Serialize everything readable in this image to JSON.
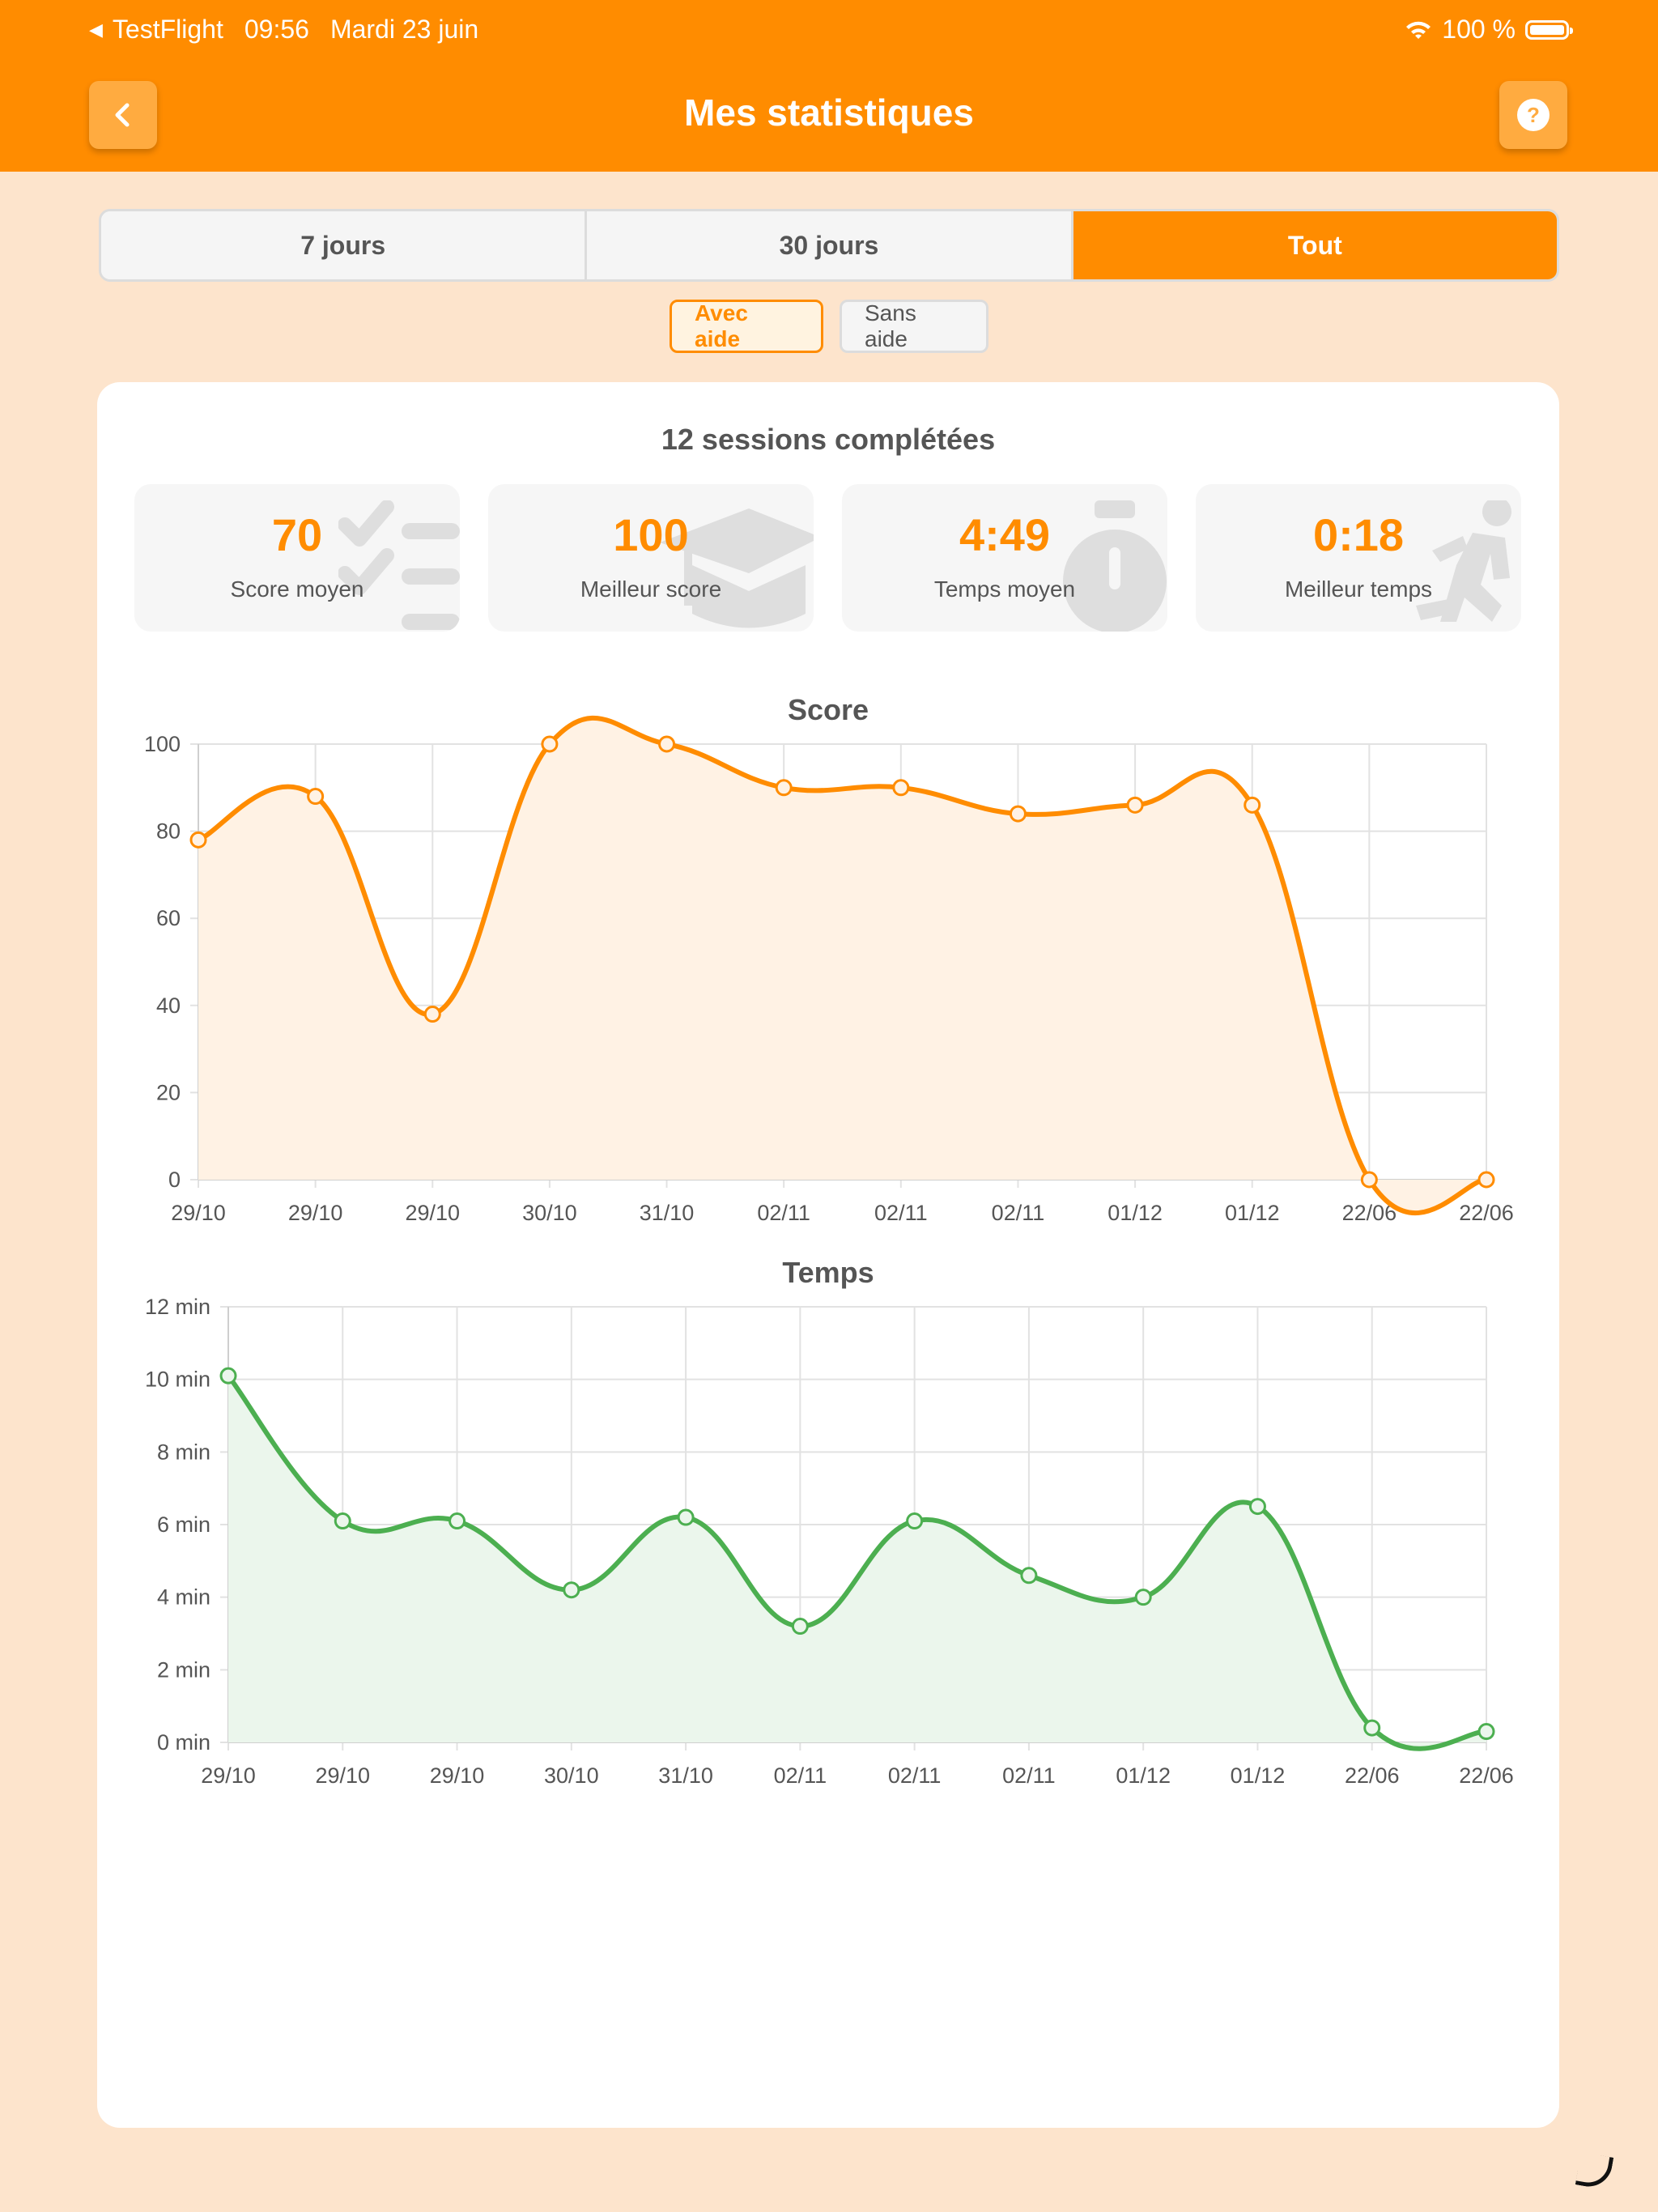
{
  "status_bar": {
    "app": "TestFlight",
    "time": "09:56",
    "date": "Mardi 23 juin",
    "battery": "100 %"
  },
  "header": {
    "title": "Mes statistiques",
    "back_icon": "chevron-left-icon",
    "help_icon": "question-circle-icon"
  },
  "period_tabs": [
    {
      "label": "7 jours",
      "active": false
    },
    {
      "label": "30 jours",
      "active": false
    },
    {
      "label": "Tout",
      "active": true
    }
  ],
  "help_toggle": {
    "with_help": "Avec aide",
    "without_help": "Sans aide",
    "selected": "Avec aide"
  },
  "summary": {
    "sessions_text": "12 sessions complétées",
    "stats": [
      {
        "value": "70",
        "label": "Score moyen",
        "icon": "checklist-icon"
      },
      {
        "value": "100",
        "label": "Meilleur score",
        "icon": "graduation-cap-icon"
      },
      {
        "value": "4:49",
        "label": "Temps moyen",
        "icon": "stopwatch-icon"
      },
      {
        "value": "0:18",
        "label": "Meilleur temps",
        "icon": "running-person-icon"
      }
    ]
  },
  "colors": {
    "accent": "#ff8c00",
    "background": "#fde4cc",
    "score_line": "#ff8c00",
    "score_fill": "#fff2e4",
    "time_line": "#4caf50",
    "time_fill": "#ebf6ec"
  },
  "chart_data": [
    {
      "type": "line",
      "title": "Score",
      "categories": [
        "29/10",
        "29/10",
        "29/10",
        "30/10",
        "31/10",
        "02/11",
        "02/11",
        "02/11",
        "01/12",
        "01/12",
        "22/06",
        "22/06"
      ],
      "series": [
        {
          "values": [
            78,
            88,
            38,
            100,
            100,
            90,
            90,
            84,
            86,
            86,
            0,
            0
          ]
        }
      ],
      "ylim": [
        0,
        100
      ],
      "yticks": [
        "100",
        "80",
        "60",
        "40",
        "20",
        "0"
      ],
      "grid": true,
      "area": true
    },
    {
      "type": "line",
      "title": "Temps",
      "categories": [
        "29/10",
        "29/10",
        "29/10",
        "30/10",
        "31/10",
        "02/11",
        "02/11",
        "02/11",
        "01/12",
        "01/12",
        "22/06",
        "22/06"
      ],
      "series": [
        {
          "values": [
            10.1,
            6.1,
            6.1,
            4.2,
            6.2,
            3.2,
            6.1,
            4.6,
            4.0,
            6.5,
            0.4,
            0.3
          ]
        }
      ],
      "ylim": [
        0,
        12
      ],
      "yticks": [
        "12 min",
        "10 min",
        "8 min",
        "6 min",
        "4 min",
        "2 min",
        "0 min"
      ],
      "grid": true,
      "area": true
    }
  ]
}
